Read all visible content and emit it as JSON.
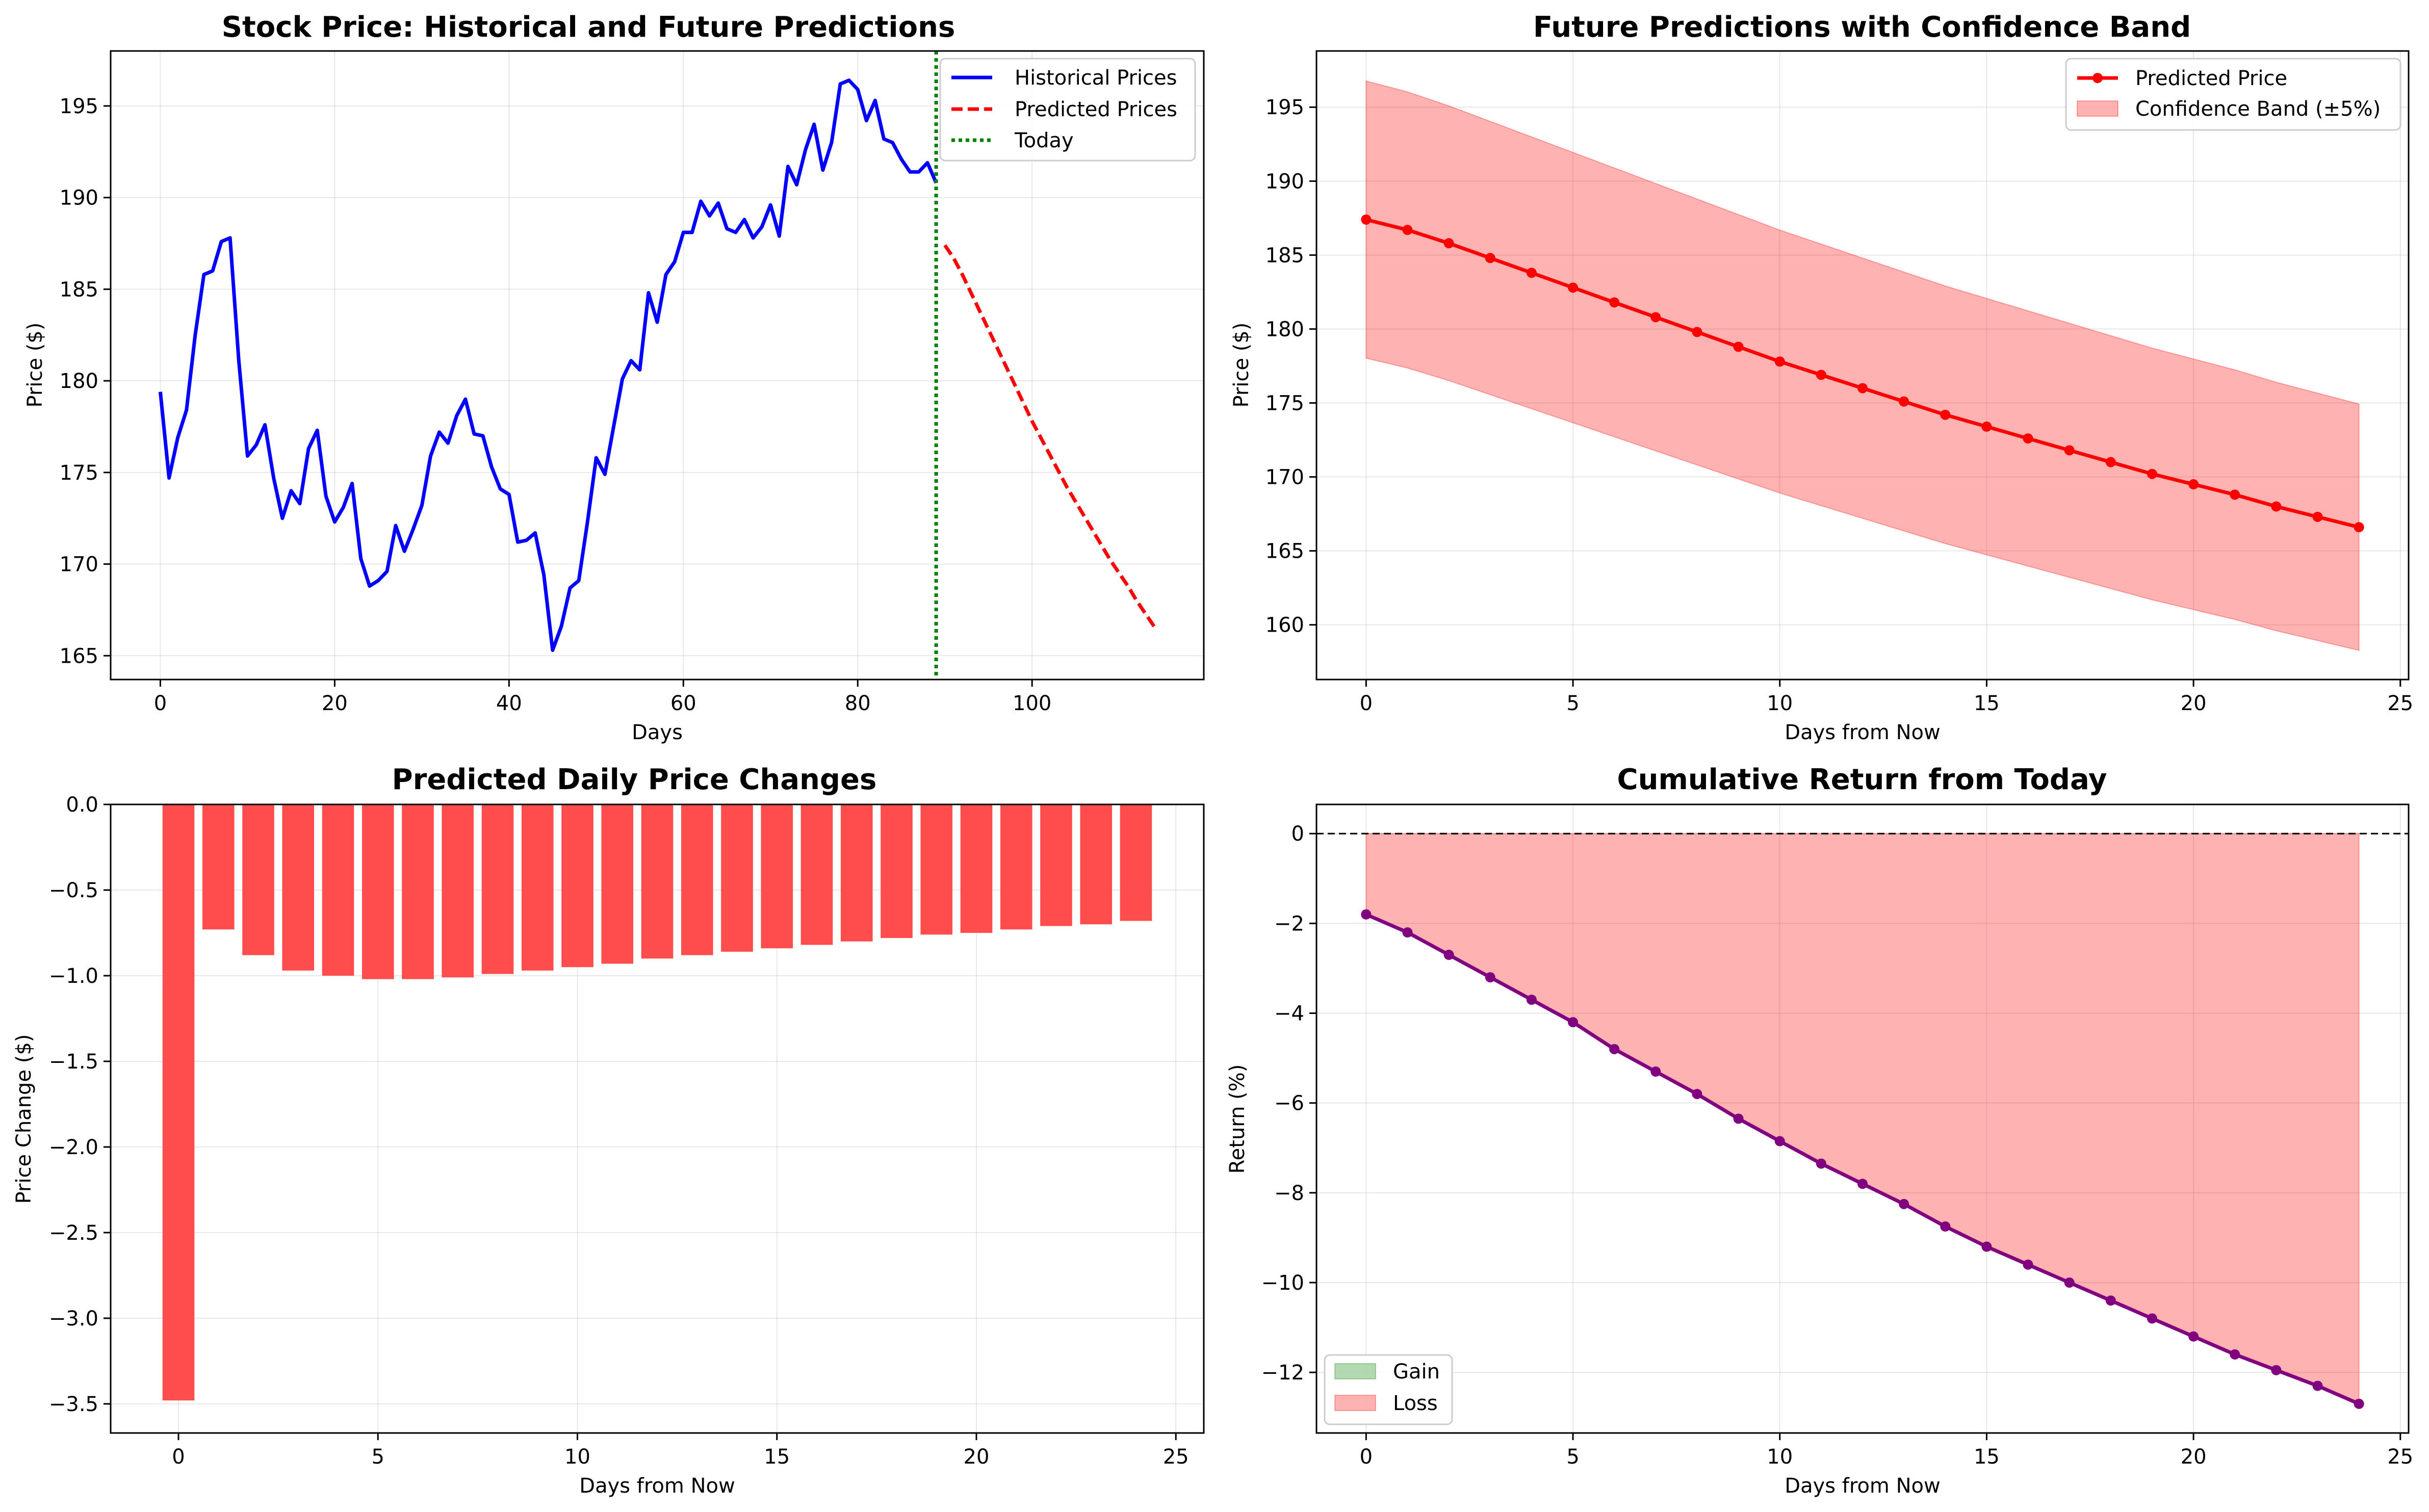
{
  "colors": {
    "historical": "#0000ff",
    "predicted": "#ff0000",
    "today": "#008000",
    "band": "#ff0000",
    "bars": "#ff4d4d",
    "cumulative": "#800080",
    "gain": "#008000",
    "loss": "#ff0000"
  },
  "chart_data": [
    {
      "type": "line",
      "title": "Stock Price: Historical and Future Predictions",
      "xlabel": "Days",
      "ylabel": "Price ($)",
      "xlim": [
        -5.7,
        119.7
      ],
      "ylim": [
        163.7,
        198.0
      ],
      "xticks": [
        0,
        20,
        40,
        60,
        80,
        100
      ],
      "yticks": [
        165,
        170,
        175,
        180,
        185,
        190,
        195
      ],
      "grid": true,
      "legend": "top-right",
      "legend_entries": [
        "Historical Prices",
        "Predicted Prices",
        "Today"
      ],
      "today_x": 89,
      "series": [
        {
          "name": "Historical Prices",
          "x_start": 0,
          "values": [
            179.4,
            174.7,
            176.9,
            178.4,
            182.5,
            185.8,
            186.0,
            187.6,
            187.8,
            181.1,
            175.9,
            176.5,
            177.6,
            174.7,
            172.5,
            174.0,
            173.3,
            176.3,
            177.3,
            173.7,
            172.3,
            173.1,
            174.4,
            170.3,
            168.8,
            169.1,
            169.6,
            172.1,
            170.7,
            171.9,
            173.2,
            175.9,
            177.2,
            176.6,
            178.1,
            179.0,
            177.1,
            177.0,
            175.3,
            174.1,
            173.8,
            171.2,
            171.3,
            171.7,
            169.4,
            165.3,
            166.6,
            168.7,
            169.1,
            172.3,
            175.8,
            174.9,
            177.5,
            180.1,
            181.1,
            180.6,
            184.8,
            183.2,
            185.8,
            186.5,
            188.1,
            188.1,
            189.8,
            189.0,
            189.7,
            188.3,
            188.1,
            188.8,
            187.8,
            188.4,
            189.6,
            187.9,
            191.7,
            190.7,
            192.6,
            194.0,
            191.5,
            193.0,
            196.2,
            196.4,
            195.9,
            194.2,
            195.3,
            193.2,
            193.0,
            192.1,
            191.4,
            191.4,
            191.9,
            190.8
          ]
        },
        {
          "name": "Predicted Prices",
          "x_start": 90,
          "values": [
            187.4,
            186.7,
            185.8,
            184.8,
            183.8,
            182.8,
            181.8,
            180.8,
            179.8,
            178.8,
            177.8,
            176.9,
            176.0,
            175.1,
            174.2,
            173.4,
            172.6,
            171.8,
            171.0,
            170.2,
            169.5,
            168.8,
            168.0,
            167.3,
            166.6
          ]
        }
      ]
    },
    {
      "type": "line",
      "title": "Future Predictions with Confidence Band",
      "xlabel": "Days from Now",
      "ylabel": "Price ($)",
      "xlim": [
        -1.2,
        25.2
      ],
      "ylim": [
        156.3,
        198.8
      ],
      "xticks": [
        0,
        5,
        10,
        15,
        20,
        25
      ],
      "yticks": [
        160,
        165,
        170,
        175,
        180,
        185,
        190,
        195
      ],
      "grid": true,
      "legend": "top-right",
      "legend_entries": [
        "Predicted Price",
        "Confidence Band (±5%)"
      ],
      "x": [
        0,
        1,
        2,
        3,
        4,
        5,
        6,
        7,
        8,
        9,
        10,
        11,
        12,
        13,
        14,
        15,
        16,
        17,
        18,
        19,
        20,
        21,
        22,
        23,
        24
      ],
      "series": [
        {
          "name": "Predicted Price",
          "values": [
            187.4,
            186.7,
            185.8,
            184.8,
            183.8,
            182.8,
            181.8,
            180.8,
            179.8,
            178.8,
            177.8,
            176.9,
            176.0,
            175.1,
            174.2,
            173.4,
            172.6,
            171.8,
            171.0,
            170.2,
            169.5,
            168.8,
            168.0,
            167.3,
            166.6
          ]
        }
      ],
      "band": {
        "name": "Confidence Band (±5%)",
        "pct": 5
      }
    },
    {
      "type": "bar",
      "title": "Predicted Daily Price Changes",
      "xlabel": "Days from Now",
      "ylabel": "Price Change ($)",
      "xlim": [
        -1.7,
        25.7
      ],
      "ylim": [
        -3.67,
        0.0
      ],
      "xticks": [
        0,
        5,
        10,
        15,
        20,
        25
      ],
      "yticks": [
        0.0,
        -0.5,
        -1.0,
        -1.5,
        -2.0,
        -2.5,
        -3.0,
        -3.5
      ],
      "ytick_labels": [
        "0.0",
        "−0.5",
        "−1.0",
        "−1.5",
        "−2.0",
        "−2.5",
        "−3.0",
        "−3.5"
      ],
      "grid": true,
      "x": [
        0,
        1,
        2,
        3,
        4,
        5,
        6,
        7,
        8,
        9,
        10,
        11,
        12,
        13,
        14,
        15,
        16,
        17,
        18,
        19,
        20,
        21,
        22,
        23,
        24
      ],
      "values": [
        -3.48,
        -0.73,
        -0.88,
        -0.97,
        -1.0,
        -1.02,
        -1.02,
        -1.01,
        -0.99,
        -0.97,
        -0.95,
        -0.93,
        -0.9,
        -0.88,
        -0.86,
        -0.84,
        -0.82,
        -0.8,
        -0.78,
        -0.76,
        -0.75,
        -0.73,
        -0.71,
        -0.7,
        -0.68
      ]
    },
    {
      "type": "line",
      "title": "Cumulative Return from Today",
      "xlabel": "Days from Now",
      "ylabel": "Return (%)",
      "xlim": [
        -1.2,
        25.2
      ],
      "ylim": [
        -13.35,
        0.65
      ],
      "xticks": [
        0,
        5,
        10,
        15,
        20,
        25
      ],
      "yticks": [
        0,
        -2,
        -4,
        -6,
        -8,
        -10,
        -12
      ],
      "ytick_labels": [
        "0",
        "−2",
        "−4",
        "−6",
        "−8",
        "−10",
        "−12"
      ],
      "grid": true,
      "legend": "bottom-left",
      "legend_entries": [
        "Gain",
        "Loss"
      ],
      "x": [
        0,
        1,
        2,
        3,
        4,
        5,
        6,
        7,
        8,
        9,
        10,
        11,
        12,
        13,
        14,
        15,
        16,
        17,
        18,
        19,
        20,
        21,
        22,
        23,
        24
      ],
      "values": [
        -1.8,
        -2.2,
        -2.7,
        -3.2,
        -3.7,
        -4.2,
        -4.8,
        -5.3,
        -5.8,
        -6.35,
        -6.85,
        -7.35,
        -7.8,
        -8.25,
        -8.75,
        -9.2,
        -9.6,
        -10.0,
        -10.4,
        -10.8,
        -11.2,
        -11.6,
        -11.95,
        -12.3,
        -12.7
      ],
      "zero_line": 0
    }
  ]
}
